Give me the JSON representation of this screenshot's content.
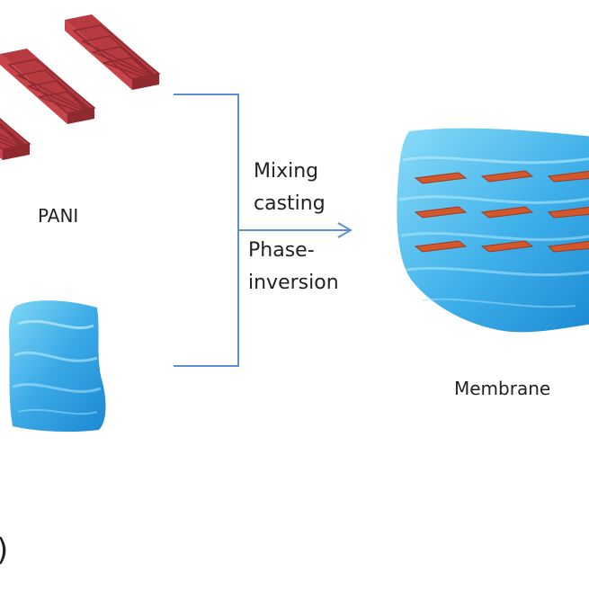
{
  "labels": {
    "pani": "PANI",
    "membrane": "Membrane",
    "panel": ")"
  },
  "process_steps": [
    "Mixing",
    "casting",
    "Phase-",
    "inversion"
  ],
  "colors": {
    "pani_block": "#c9434a",
    "pani_block_dark": "#8e2a30",
    "water_light": "#6fd0f5",
    "water_dark": "#1f8fd6",
    "arrow": "#5b8fd4",
    "platelet": "#d2572c"
  }
}
